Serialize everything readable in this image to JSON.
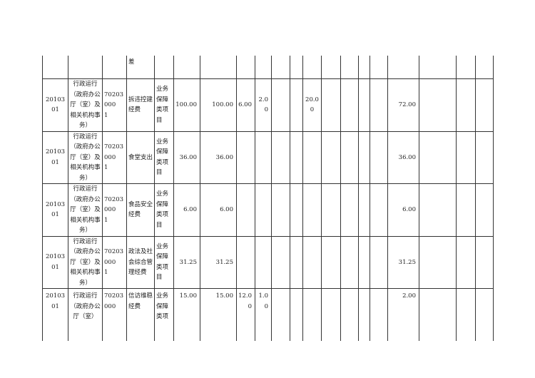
{
  "top_row": {
    "project_name_tail": "差"
  },
  "rows": [
    {
      "func_code": "20103\n01",
      "func_name": "行政运行（政府办公厅（室）及相关机构事务）",
      "proj_code": "70203000\n1",
      "proj_name": "拆违控建经费",
      "proj_type": "业务保障类项目",
      "total": "100.00",
      "subtotal": "100.00",
      "c7": "6.00",
      "c8": "2.00",
      "c11": "20.00",
      "c16": "72.00"
    },
    {
      "func_code": "20103\n01",
      "func_name": "行政运行（政府办公厅（室）及相关机构事务）",
      "proj_code": "70203000\n1",
      "proj_name": "食堂支出",
      "proj_type": "业务保障类项目",
      "total": "36.00",
      "subtotal": "36.00",
      "c7": "",
      "c8": "",
      "c11": "",
      "c16": "36.00"
    },
    {
      "func_code": "20103\n01",
      "func_name": "行政运行（政府办公厅（室）及相关机构事务）",
      "proj_code": "70203000\n1",
      "proj_name": "食品安全经费",
      "proj_type": "业务保障类项目",
      "total": "6.00",
      "subtotal": "6.00",
      "c7": "",
      "c8": "",
      "c11": "",
      "c16": "6.00"
    },
    {
      "func_code": "20103\n01",
      "func_name": "行政运行（政府办公厅（室）及相关机构事务）",
      "proj_code": "70203000\n1",
      "proj_name": "政法及社会综合管理经费",
      "proj_type": "业务保障类项目",
      "total": "31.25",
      "subtotal": "31.25",
      "c7": "",
      "c8": "",
      "c11": "",
      "c16": "31.25"
    },
    {
      "func_code": "20103\n01",
      "func_name": "行政运行（政府办公厅（室）",
      "proj_code": "70203000",
      "proj_name": "信访维稳经费",
      "proj_type": "业务保障类项",
      "total": "15.00",
      "subtotal": "15.00",
      "c7": "12.00",
      "c8": "1.00",
      "c11": "",
      "c16": "2.00"
    }
  ]
}
